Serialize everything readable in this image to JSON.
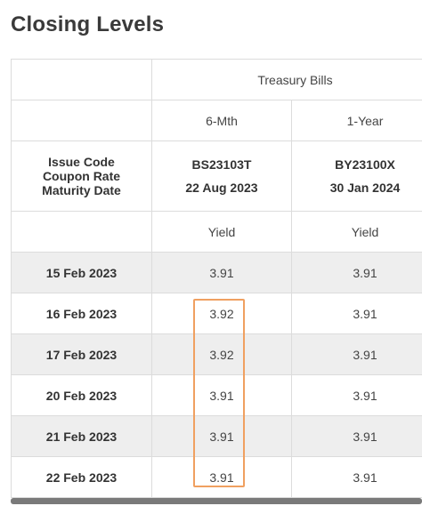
{
  "page": {
    "title": "Closing Levels"
  },
  "table": {
    "group_header": "Treasury Bills",
    "tenors": [
      "6-Mth",
      "1-Year"
    ],
    "row_labels": [
      "Issue Code",
      "Coupon Rate",
      "Maturity Date"
    ],
    "issues": [
      {
        "code": "BS23103T",
        "maturity": "22 Aug 2023"
      },
      {
        "code": "BY23100X",
        "maturity": "30 Jan 2024"
      }
    ],
    "measure": [
      "Yield",
      "Yield"
    ],
    "rows": [
      {
        "date": "15 Feb 2023",
        "values": [
          "3.91",
          "3.91"
        ]
      },
      {
        "date": "16 Feb 2023",
        "values": [
          "3.92",
          "3.91"
        ]
      },
      {
        "date": "17 Feb 2023",
        "values": [
          "3.92",
          "3.91"
        ]
      },
      {
        "date": "20 Feb 2023",
        "values": [
          "3.91",
          "3.91"
        ]
      },
      {
        "date": "21 Feb 2023",
        "values": [
          "3.91",
          "3.91"
        ]
      },
      {
        "date": "22 Feb 2023",
        "values": [
          "3.91",
          "3.91"
        ]
      }
    ]
  },
  "colors": {
    "highlight_border": "#f0a060",
    "alt_row": "#eeeeee",
    "scrollbar": "#7a7a7a"
  }
}
